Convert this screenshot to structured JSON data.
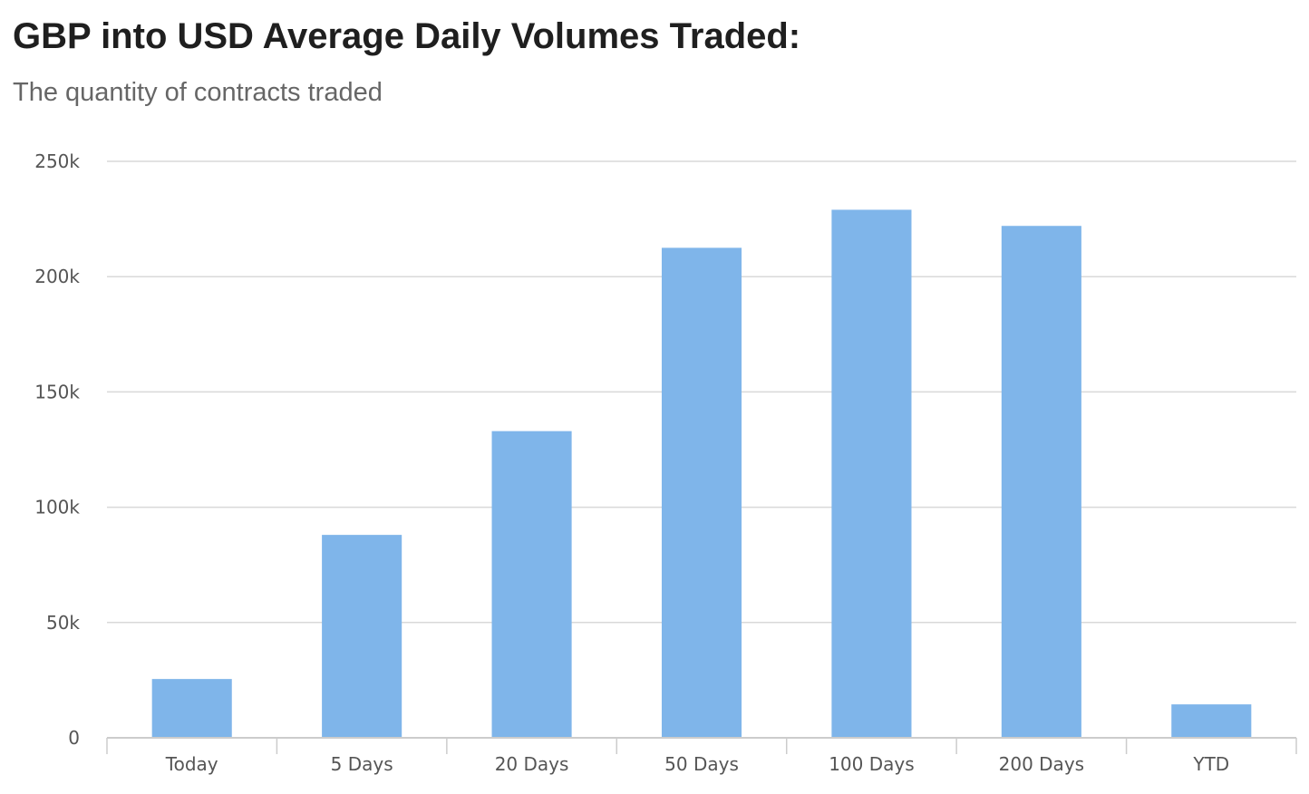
{
  "chart_data": {
    "type": "bar",
    "title": "GBP into USD Average Daily Volumes Traded:",
    "subtitle": "The quantity of contracts traded",
    "xlabel": "",
    "ylabel": "",
    "categories": [
      "Today",
      "5 Days",
      "20 Days",
      "50 Days",
      "100 Days",
      "200 Days",
      "YTD"
    ],
    "values": [
      25500,
      88000,
      133000,
      212500,
      229000,
      222000,
      14500
    ],
    "ylim": [
      0,
      250000
    ],
    "y_ticks": [
      0,
      50000,
      100000,
      150000,
      200000,
      250000
    ],
    "y_tick_labels": [
      "0",
      "50k",
      "100k",
      "150k",
      "200k",
      "250k"
    ],
    "grid": true,
    "legend": "none",
    "bar_color": "#7fb5ea",
    "grid_color": "#d9d9d9",
    "axis_color": "#cccccc"
  }
}
